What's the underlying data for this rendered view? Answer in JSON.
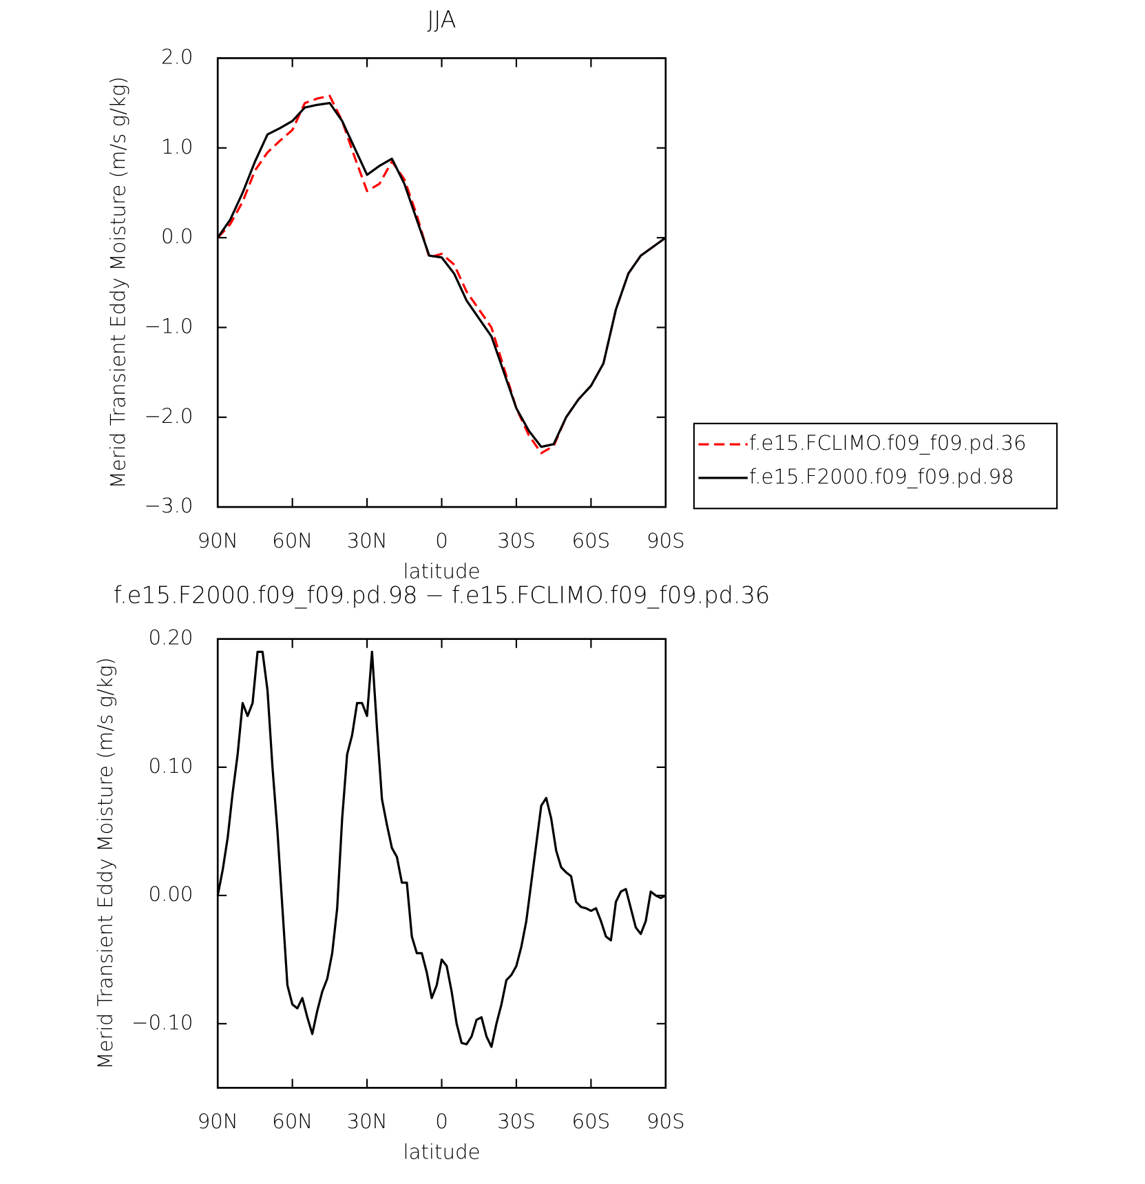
{
  "chart_data": [
    {
      "type": "line",
      "title": "JJA",
      "xlabel": "latitude",
      "ylabel": "Merid Transient Eddy Moisture (m/s g/kg)",
      "xlim": [
        90,
        -90
      ],
      "ylim": [
        -3,
        2
      ],
      "xticks": [
        {
          "value": 90,
          "label": "90N"
        },
        {
          "value": 60,
          "label": "60N"
        },
        {
          "value": 30,
          "label": "30N"
        },
        0,
        {
          "value": -30,
          "label": "30S"
        },
        {
          "value": -60,
          "label": "60S"
        },
        {
          "value": -90,
          "label": "90S"
        }
      ],
      "yticks": [
        {
          "value": -3,
          "label": "−3.0"
        },
        {
          "value": -2,
          "label": "−2.0"
        },
        {
          "value": -1,
          "label": "−1.0"
        },
        {
          "value": 0,
          "label": "0.0"
        },
        {
          "value": 1,
          "label": "1.0"
        },
        {
          "value": 2,
          "label": "2.0"
        }
      ],
      "legend": "right",
      "x": [
        90,
        85,
        80,
        75,
        70,
        65,
        60,
        55,
        50,
        45,
        40,
        35,
        30,
        25,
        20,
        15,
        10,
        5,
        0,
        -5,
        -10,
        -15,
        -20,
        -25,
        -30,
        -35,
        -40,
        -45,
        -50,
        -55,
        -60,
        -65,
        -70,
        -75,
        -80,
        -85,
        -90
      ],
      "series": [
        {
          "name": "f.e15.FCLIMO.f09_f09.pd.36",
          "color": "#ff0000",
          "dash": true,
          "values": [
            0,
            0.15,
            0.4,
            0.75,
            0.95,
            1.08,
            1.2,
            1.5,
            1.55,
            1.58,
            1.3,
            0.9,
            0.52,
            0.6,
            0.85,
            0.65,
            0.25,
            -0.22,
            -0.18,
            -0.3,
            -0.6,
            -0.8,
            -1.0,
            -1.45,
            -1.9,
            -2.2,
            -2.4,
            -2.32,
            -2.0,
            -1.8,
            -1.65,
            -1.4,
            -0.8,
            -0.4,
            -0.2,
            -0.1,
            0
          ]
        },
        {
          "name": "f.e15.F2000.f09_f09.pd.98",
          "color": "#000000",
          "dash": false,
          "values": [
            0,
            0.2,
            0.5,
            0.85,
            1.15,
            1.22,
            1.3,
            1.45,
            1.48,
            1.5,
            1.3,
            1.0,
            0.7,
            0.8,
            0.88,
            0.6,
            0.2,
            -0.2,
            -0.22,
            -0.4,
            -0.7,
            -0.9,
            -1.1,
            -1.5,
            -1.9,
            -2.15,
            -2.33,
            -2.3,
            -2.0,
            -1.8,
            -1.65,
            -1.4,
            -0.8,
            -0.4,
            -0.2,
            -0.1,
            0
          ]
        }
      ]
    },
    {
      "type": "line",
      "title": "f.e15.F2000.f09_f09.pd.98 − f.e15.FCLIMO.f09_f09.pd.36",
      "xlabel": "latitude",
      "ylabel": "Merid Transient Eddy Moisture (m/s g/kg)",
      "xlim": [
        90,
        -90
      ],
      "ylim": [
        -0.15,
        0.2
      ],
      "xticks": [
        {
          "value": 90,
          "label": "90N"
        },
        {
          "value": 60,
          "label": "60N"
        },
        {
          "value": 30,
          "label": "30N"
        },
        0,
        {
          "value": -30,
          "label": "30S"
        },
        {
          "value": -60,
          "label": "60S"
        },
        {
          "value": -90,
          "label": "90S"
        }
      ],
      "yticks": [
        {
          "value": -0.1,
          "label": "−0.10"
        },
        {
          "value": 0,
          "label": "0.00"
        },
        {
          "value": 0.1,
          "label": "0.10"
        },
        {
          "value": 0.2,
          "label": "0.20"
        }
      ],
      "x": [
        90,
        88,
        86,
        84,
        82,
        80,
        78,
        76,
        74,
        72,
        70,
        68,
        66,
        64,
        62,
        60,
        58,
        56,
        54,
        52,
        50,
        48,
        46,
        44,
        42,
        40,
        38,
        36,
        34,
        32,
        30,
        28,
        26,
        24,
        22,
        20,
        18,
        16,
        14,
        12,
        10,
        8,
        6,
        4,
        2,
        0,
        -2,
        -4,
        -6,
        -8,
        -10,
        -12,
        -14,
        -16,
        -18,
        -20,
        -22,
        -24,
        -26,
        -28,
        -30,
        -32,
        -34,
        -36,
        -38,
        -40,
        -42,
        -44,
        -46,
        -48,
        -50,
        -52,
        -54,
        -56,
        -58,
        -60,
        -62,
        -64,
        -66,
        -68,
        -70,
        -72,
        -74,
        -76,
        -78,
        -80,
        -82,
        -84,
        -86,
        -88,
        -90
      ],
      "series": [
        {
          "color": "#000000",
          "values": [
            0,
            0.02,
            0.045,
            0.08,
            0.11,
            0.15,
            0.14,
            0.15,
            0.19,
            0.19,
            0.16,
            0.1,
            0.05,
            -0.01,
            -0.07,
            -0.085,
            -0.088,
            -0.08,
            -0.095,
            -0.108,
            -0.09,
            -0.075,
            -0.065,
            -0.045,
            -0.01,
            0.06,
            0.11,
            0.125,
            0.15,
            0.15,
            0.14,
            0.19,
            0.13,
            0.075,
            0.055,
            0.037,
            0.03,
            0.01,
            0.01,
            -0.032,
            -0.045,
            -0.045,
            -0.06,
            -0.08,
            -0.07,
            -0.05,
            -0.055,
            -0.075,
            -0.1,
            -0.115,
            -0.116,
            -0.11,
            -0.097,
            -0.095,
            -0.11,
            -0.118,
            -0.1,
            -0.085,
            -0.066,
            -0.062,
            -0.055,
            -0.04,
            -0.02,
            0.01,
            0.04,
            0.07,
            0.076,
            0.06,
            0.035,
            0.022,
            0.018,
            0.015,
            -0.005,
            -0.009,
            -0.01,
            -0.012,
            -0.01,
            -0.02,
            -0.032,
            -0.035,
            -0.005,
            0.003,
            0.005,
            -0.01,
            -0.025,
            -0.03,
            -0.02,
            0.003,
            0,
            -0.002,
            0
          ]
        }
      ]
    }
  ]
}
